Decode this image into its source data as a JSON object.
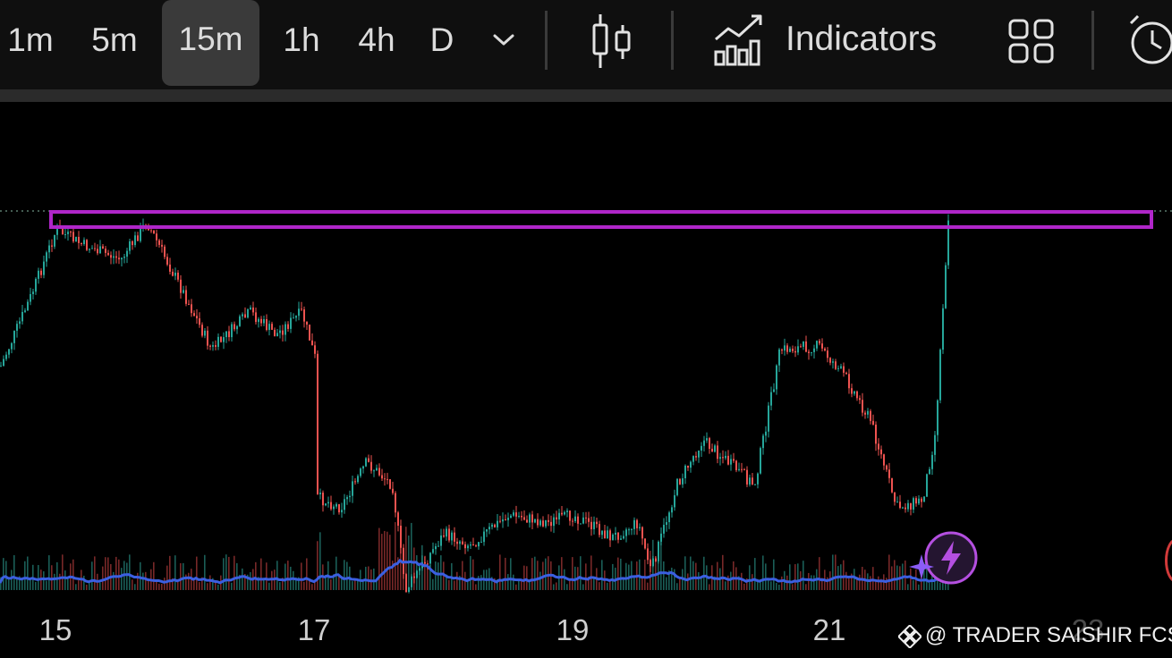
{
  "toolbar": {
    "timeframes": [
      {
        "label": "1m",
        "active": false
      },
      {
        "label": "5m",
        "active": false
      },
      {
        "label": "15m",
        "active": true
      },
      {
        "label": "1h",
        "active": false
      },
      {
        "label": "4h",
        "active": false
      },
      {
        "label": "D",
        "active": false
      }
    ],
    "indicators_label": "Indicators",
    "icons": [
      "chevron-down-icon",
      "candlestick-icon",
      "indicators-icon",
      "layout-grid-icon",
      "alarm-clock-icon"
    ]
  },
  "chart_data": {
    "type": "candlestick",
    "x_axis_ticks": [
      "15",
      "17",
      "19",
      "21",
      "23"
    ],
    "colors": {
      "up": "#26a69a",
      "down": "#ef5350",
      "volume_ma": "#3b5fe0",
      "zone": "#b026c9"
    },
    "resistance_zone": {
      "note": "purple rectangle at recent high"
    },
    "close_path": [
      [
        14.3,
        0.3
      ],
      [
        14.5,
        0.46
      ],
      [
        14.8,
        0.22
      ],
      [
        15.0,
        0.04
      ],
      [
        15.2,
        0.08
      ],
      [
        15.5,
        0.12
      ],
      [
        15.7,
        0.02
      ],
      [
        16.0,
        0.22
      ],
      [
        16.2,
        0.36
      ],
      [
        16.5,
        0.26
      ],
      [
        16.7,
        0.32
      ],
      [
        16.9,
        0.26
      ],
      [
        17.0,
        0.38
      ],
      [
        17.0,
        0.75
      ],
      [
        17.2,
        0.78
      ],
      [
        17.4,
        0.66
      ],
      [
        17.6,
        0.72
      ],
      [
        17.7,
        1.0
      ],
      [
        17.8,
        0.95
      ],
      [
        18.0,
        0.85
      ],
      [
        18.2,
        0.88
      ],
      [
        18.5,
        0.8
      ],
      [
        18.8,
        0.82
      ],
      [
        19.0,
        0.8
      ],
      [
        19.3,
        0.86
      ],
      [
        19.5,
        0.82
      ],
      [
        19.6,
        0.95
      ],
      [
        19.8,
        0.72
      ],
      [
        20.0,
        0.6
      ],
      [
        20.2,
        0.66
      ],
      [
        20.4,
        0.72
      ],
      [
        20.6,
        0.36
      ],
      [
        20.9,
        0.35
      ],
      [
        21.1,
        0.43
      ],
      [
        21.3,
        0.55
      ],
      [
        21.5,
        0.78
      ],
      [
        21.7,
        0.76
      ],
      [
        21.8,
        0.58
      ],
      [
        21.9,
        0.0
      ]
    ]
  },
  "watermark": {
    "text": "@ TRADER SAISHIR FCS"
  }
}
